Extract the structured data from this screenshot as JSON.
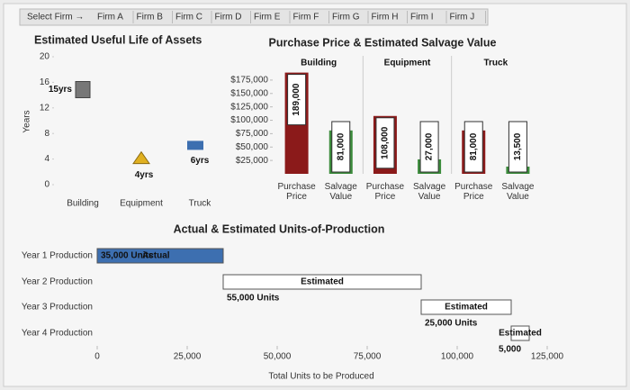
{
  "tabs": {
    "label": "Select Firm →",
    "items": [
      "Firm A",
      "Firm B",
      "Firm C",
      "Firm D",
      "Firm E",
      "Firm F",
      "Firm G",
      "Firm H",
      "Firm I",
      "Firm J"
    ]
  },
  "chart_data": [
    {
      "type": "pictogram",
      "title": "Estimated Useful Life of Assets",
      "y_label": "Years",
      "categories": [
        "Building",
        "Equipment",
        "Truck"
      ],
      "values": [
        15,
        4,
        6
      ],
      "value_labels": [
        "15yrs",
        "4yrs",
        "6yrs"
      ],
      "colors": [
        "#777777",
        "#e0b020",
        "#3d6fb0"
      ],
      "ylim": [
        0,
        20
      ],
      "yticks": [
        0,
        4,
        8,
        12,
        16,
        20
      ]
    },
    {
      "type": "grouped_bar",
      "title": "Purchase Price & Estimated Salvage Value",
      "groups": [
        "Building",
        "Equipment",
        "Truck"
      ],
      "categories": [
        "Purchase Price",
        "Salvage Value",
        "Purchase Price",
        "Salvage Value",
        "Purchase Price",
        "Salvage Value"
      ],
      "values": [
        189000,
        81000,
        108000,
        27000,
        81000,
        13500
      ],
      "value_labels": [
        "189,000",
        "81,000",
        "108,000",
        "27,000",
        "81,000",
        "13,500"
      ],
      "colors": [
        "#8b1a1a",
        "#3c8c3c",
        "#8b1a1a",
        "#3c8c3c",
        "#8b1a1a",
        "#3c8c3c"
      ],
      "ylim": [
        0,
        190000
      ],
      "yticks": [
        {
          "value": 25000,
          "label": "$25,000"
        },
        {
          "value": 50000,
          "label": "$50,000"
        },
        {
          "value": 75000,
          "label": "$75,000"
        },
        {
          "value": 100000,
          "label": "$100,000"
        },
        {
          "value": 125000,
          "label": "$125,000"
        },
        {
          "value": 150000,
          "label": "$150,000"
        },
        {
          "value": 175000,
          "label": "$175,000"
        }
      ]
    },
    {
      "type": "stacked_timeline",
      "title": "Actual & Estimated Units-of-Production",
      "x_label": "Total Units to be Produced",
      "categories": [
        "Year 1 Production",
        "Year 2 Production",
        "Year 3 Production",
        "Year 4 Production"
      ],
      "values": [
        35000,
        55000,
        25000,
        5000
      ],
      "value_labels": [
        "35,000 Units",
        "55,000 Units",
        "25,000 Units",
        "5,000"
      ],
      "status": [
        "Actual",
        "Estimated",
        "Estimated",
        "Estimated"
      ],
      "colors": {
        "Actual": "#3d6fb0",
        "Estimated": "#ffffff"
      },
      "xlim": [
        0,
        125000
      ],
      "xticks": [
        0,
        {
          "value": 25000,
          "label": "25,000"
        },
        {
          "value": 50000,
          "label": "50,000"
        },
        {
          "value": 75000,
          "label": "75,000"
        },
        {
          "value": 100000,
          "label": "100,000"
        },
        {
          "value": 125000,
          "label": "125,000"
        }
      ]
    }
  ]
}
